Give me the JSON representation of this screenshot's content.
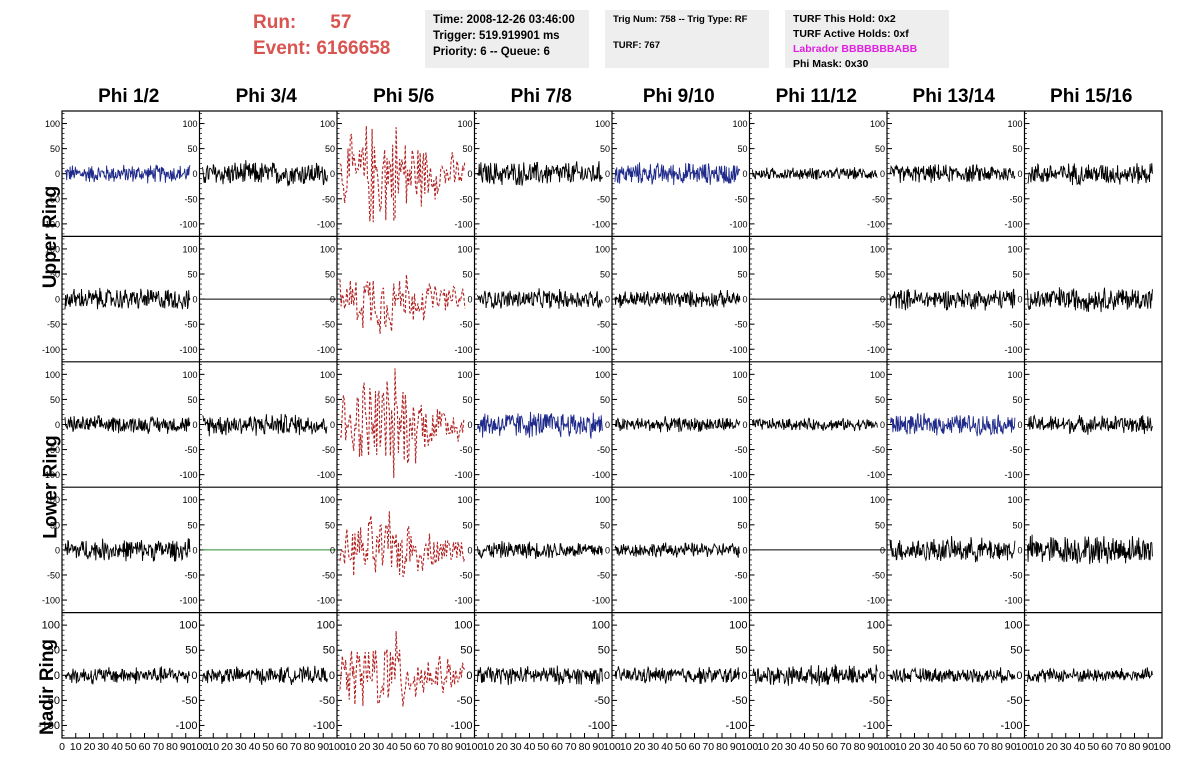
{
  "header": {
    "run_label": "Run:",
    "run_value": "57",
    "event_label": "Event:",
    "event_value": "6166658",
    "time_line": "Time: 2008-12-26 03:46:00",
    "trigger_line": "Trigger: 519.919901 ms",
    "priority_line": "Priority: 6 -- Queue: 6",
    "trig_num_line": "Trig Num: 758 -- Trig Type: RF",
    "turf_line": "TURF: 767",
    "turf_this_hold": "TURF This Hold: 0x2",
    "turf_active_holds": "TURF Active Holds: 0xf",
    "labrador": "Labrador BBBBBBBABB",
    "phi_mask": "Phi Mask: 0x30"
  },
  "colors": {
    "title_red": "#d9534f",
    "labrador_magenta": "#e020e0",
    "info_box_bg": "#eeeeee",
    "trace_black": "#000000",
    "trace_blue": "#1f2a8a",
    "trace_red": "#b22222",
    "trace_green": "#2e8b2e"
  },
  "chart_data": {
    "type": "line",
    "columns": [
      "Phi 1/2",
      "Phi 3/4",
      "Phi 5/6",
      "Phi 7/8",
      "Phi 9/10",
      "Phi 11/12",
      "Phi 13/14",
      "Phi 15/16"
    ],
    "rows": [
      "Upper Ring",
      "Upper Ring",
      "Lower Ring",
      "Lower Ring",
      "Nadir Ring"
    ],
    "row_label_groups": [
      {
        "label": "Upper Ring",
        "rows": [
          0,
          1
        ]
      },
      {
        "label": "Lower Ring",
        "rows": [
          2,
          3
        ]
      },
      {
        "label": "Nadir Ring",
        "rows": [
          4
        ]
      }
    ],
    "ylim": [
      -125,
      125
    ],
    "xlim": [
      0,
      100
    ],
    "y_ticks": [
      -100,
      -50,
      0,
      50,
      100
    ],
    "x_tick_labels": [
      "0",
      "10",
      "20",
      "30",
      "40",
      "50",
      "60",
      "70",
      "80",
      "90",
      "100"
    ],
    "traces": [
      [
        {
          "style": "blue",
          "amp": 15
        },
        {
          "style": "black",
          "amp": 20
        },
        {
          "style": "red",
          "amp": 70
        },
        {
          "style": "black",
          "amp": 20
        },
        {
          "style": "blue",
          "amp": 18
        },
        {
          "style": "black",
          "amp": 10
        },
        {
          "style": "black",
          "amp": 15
        },
        {
          "style": "black",
          "amp": 18
        }
      ],
      [
        {
          "style": "black",
          "amp": 18
        },
        {
          "style": "flat",
          "amp": 0
        },
        {
          "style": "red",
          "amp": 45
        },
        {
          "style": "black",
          "amp": 16
        },
        {
          "style": "black",
          "amp": 14
        },
        {
          "style": "flat",
          "amp": 0
        },
        {
          "style": "black",
          "amp": 17
        },
        {
          "style": "black",
          "amp": 20
        }
      ],
      [
        {
          "style": "black",
          "amp": 14
        },
        {
          "style": "black",
          "amp": 18
        },
        {
          "style": "red",
          "amp": 70
        },
        {
          "style": "blue",
          "amp": 22
        },
        {
          "style": "black",
          "amp": 12
        },
        {
          "style": "black",
          "amp": 10
        },
        {
          "style": "blue",
          "amp": 17
        },
        {
          "style": "black",
          "amp": 15
        }
      ],
      [
        {
          "style": "black",
          "amp": 18
        },
        {
          "style": "green-flat",
          "amp": 0
        },
        {
          "style": "red",
          "amp": 45
        },
        {
          "style": "black",
          "amp": 14
        },
        {
          "style": "black",
          "amp": 12
        },
        {
          "style": "flat",
          "amp": 0
        },
        {
          "style": "black",
          "amp": 20
        },
        {
          "style": "black",
          "amp": 24
        }
      ],
      [
        {
          "style": "black",
          "amp": 14
        },
        {
          "style": "black",
          "amp": 14
        },
        {
          "style": "red",
          "amp": 55
        },
        {
          "style": "black",
          "amp": 15
        },
        {
          "style": "black",
          "amp": 14
        },
        {
          "style": "black",
          "amp": 16
        },
        {
          "style": "black",
          "amp": 12
        },
        {
          "style": "black",
          "amp": 12
        }
      ]
    ]
  }
}
